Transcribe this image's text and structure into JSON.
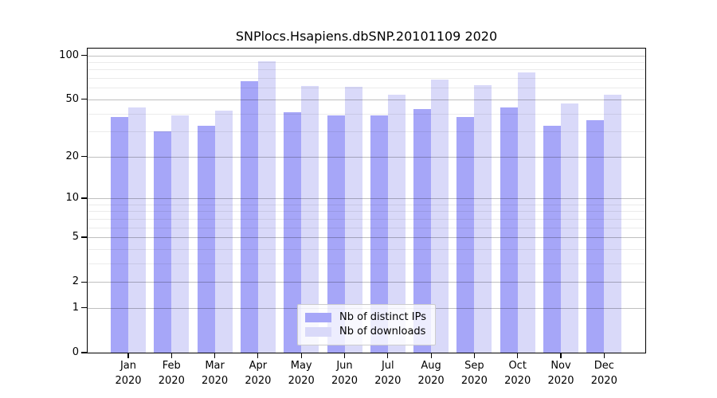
{
  "title": "SNPlocs.Hsapiens.dbSNP.20101109 2020",
  "y_axis": {
    "scale": "log10(value+1)",
    "ticks": [
      100,
      50,
      20,
      10,
      5,
      2,
      1,
      0
    ],
    "minor_gridlines": [
      3,
      4,
      6,
      7,
      8,
      9,
      30,
      40,
      60,
      70,
      80,
      90
    ]
  },
  "chart_data": {
    "type": "bar",
    "title": "SNPlocs.Hsapiens.dbSNP.20101109 2020",
    "categories": [
      "Jan 2020",
      "Feb 2020",
      "Mar 2020",
      "Apr 2020",
      "May 2020",
      "Jun 2020",
      "Jul 2020",
      "Aug 2020",
      "Sep 2020",
      "Oct 2020",
      "Nov 2020",
      "Dec 2020"
    ],
    "series": [
      {
        "name": "Nb of distinct IPs",
        "color": "#a6a6f8",
        "values": [
          38,
          30,
          33,
          67,
          41,
          39,
          39,
          43,
          38,
          44,
          33,
          36
        ]
      },
      {
        "name": "Nb of downloads",
        "color": "#d9d9f9",
        "values": [
          44,
          39,
          42,
          91,
          62,
          61,
          54,
          68,
          63,
          77,
          47,
          54
        ]
      }
    ],
    "xlabel": "",
    "ylabel": "",
    "ylim": [
      0,
      100
    ],
    "grid": true,
    "legend_position": "bottom-center",
    "bar_mode": "grouped"
  },
  "colors": {
    "frame": "#000000",
    "background": "#ffffff",
    "major_grid": "rgba(0,0,0,0.25)",
    "minor_grid": "rgba(0,0,0,0.08)"
  }
}
